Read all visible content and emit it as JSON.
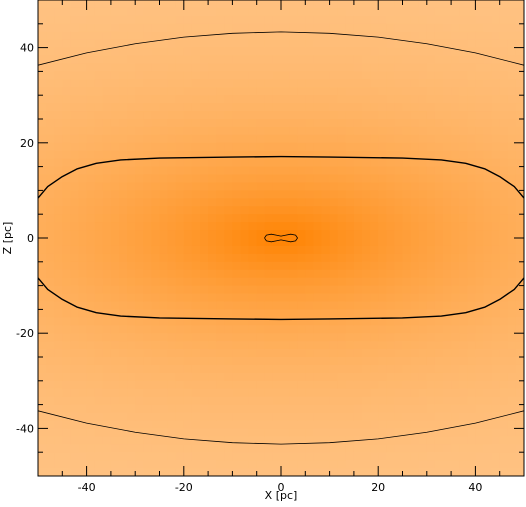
{
  "chart_data": {
    "type": "heatmap",
    "title": "",
    "xlabel": "X [pc]",
    "ylabel": "Z [pc]",
    "xlim": [
      -50,
      50
    ],
    "ylim": [
      -50,
      50
    ],
    "x_ticks": [
      -40,
      -20,
      0,
      20,
      40
    ],
    "y_ticks": [
      -40,
      -20,
      0,
      20,
      40
    ],
    "x_tick_labels": [
      "-40",
      "-20",
      "0",
      "20",
      "40"
    ],
    "y_tick_labels": [
      "-40",
      "-20",
      "0",
      "20",
      "40"
    ],
    "minor_tick_step": 5,
    "grid": false,
    "colormap": {
      "peak": "#ff8200",
      "edge": "#ffc88e"
    },
    "field": {
      "description_units": "pc",
      "center": [
        0,
        0
      ],
      "scale_x": 45,
      "scale_z": 20
    },
    "contours": [
      {
        "level": "outer",
        "color": "#000000",
        "paths": [
          [
            [
              -50,
              36.3
            ],
            [
              -40,
              38.9
            ],
            [
              -30,
              40.8
            ],
            [
              -20,
              42.2
            ],
            [
              -10,
              43.0
            ],
            [
              0,
              43.3
            ],
            [
              10,
              43.0
            ],
            [
              20,
              42.2
            ],
            [
              30,
              40.8
            ],
            [
              40,
              38.9
            ],
            [
              50,
              36.3
            ]
          ],
          [
            [
              -50,
              -36.3
            ],
            [
              -40,
              -38.9
            ],
            [
              -30,
              -40.8
            ],
            [
              -20,
              -42.2
            ],
            [
              -10,
              -43.0
            ],
            [
              0,
              -43.3
            ],
            [
              10,
              -43.0
            ],
            [
              20,
              -42.2
            ],
            [
              30,
              -40.8
            ],
            [
              40,
              -38.9
            ],
            [
              50,
              -36.3
            ]
          ]
        ]
      },
      {
        "level": "middle",
        "color": "#000000",
        "paths": [
          [
            [
              -50,
              8.4
            ],
            [
              -48,
              10.8
            ],
            [
              -45,
              12.9
            ],
            [
              -42,
              14.5
            ],
            [
              -38,
              15.7
            ],
            [
              -33,
              16.4
            ],
            [
              -25,
              16.8
            ],
            [
              -10,
              17.0
            ],
            [
              0,
              17.1
            ],
            [
              10,
              17.0
            ],
            [
              25,
              16.8
            ],
            [
              33,
              16.4
            ],
            [
              38,
              15.7
            ],
            [
              42,
              14.5
            ],
            [
              45,
              12.9
            ],
            [
              48,
              10.8
            ],
            [
              50,
              8.4
            ]
          ],
          [
            [
              -50,
              -8.4
            ],
            [
              -48,
              -10.8
            ],
            [
              -45,
              -12.9
            ],
            [
              -42,
              -14.5
            ],
            [
              -38,
              -15.7
            ],
            [
              -33,
              -16.4
            ],
            [
              -25,
              -16.8
            ],
            [
              -10,
              -17.0
            ],
            [
              0,
              -17.1
            ],
            [
              10,
              -17.0
            ],
            [
              25,
              -16.8
            ],
            [
              33,
              -16.4
            ],
            [
              38,
              -15.7
            ],
            [
              42,
              -14.5
            ],
            [
              45,
              -12.9
            ],
            [
              48,
              -10.8
            ],
            [
              50,
              -8.4
            ]
          ]
        ]
      },
      {
        "level": "inner",
        "color": "#000000",
        "paths": [
          [
            [
              -3.4,
              0
            ],
            [
              -3.0,
              0.6
            ],
            [
              -2.0,
              0.8
            ],
            [
              -1.0,
              0.6
            ],
            [
              0,
              0.4
            ],
            [
              1.0,
              0.6
            ],
            [
              2.0,
              0.8
            ],
            [
              3.0,
              0.6
            ],
            [
              3.4,
              0
            ],
            [
              3.0,
              -0.6
            ],
            [
              2.0,
              -0.8
            ],
            [
              1.0,
              -0.6
            ],
            [
              0,
              -0.4
            ],
            [
              -1.0,
              -0.6
            ],
            [
              -2.0,
              -0.8
            ],
            [
              -3.0,
              -0.6
            ],
            [
              -3.4,
              0
            ]
          ]
        ]
      }
    ]
  }
}
